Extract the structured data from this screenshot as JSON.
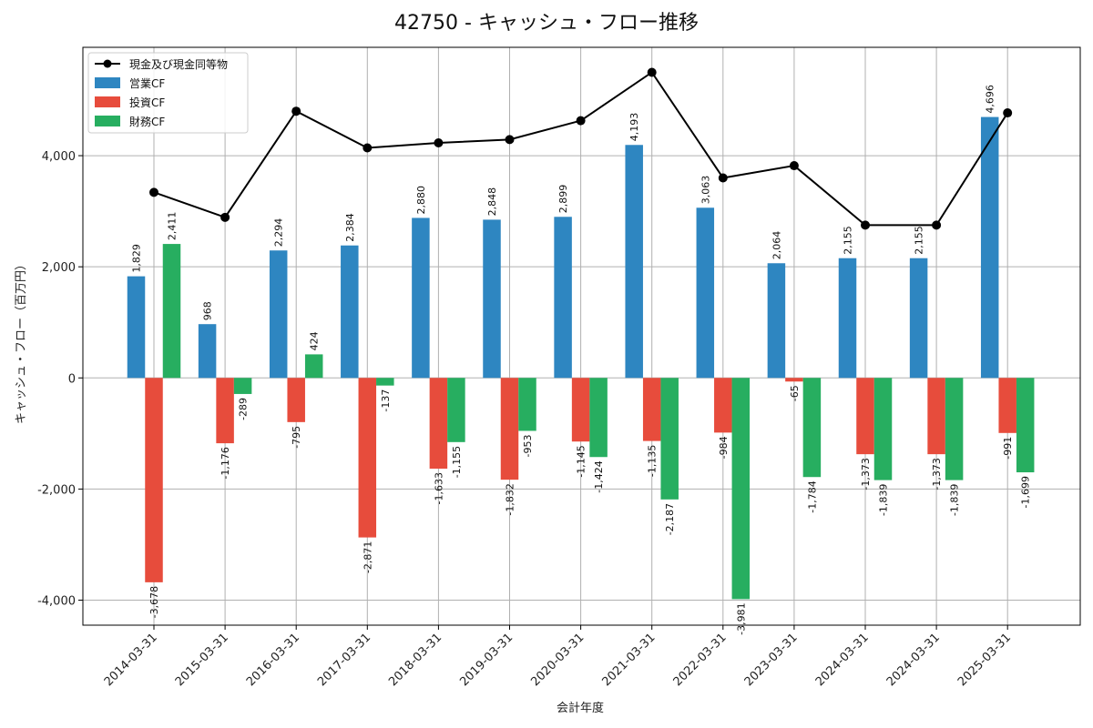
{
  "chart_data": {
    "type": "bar",
    "title": "42750 - キャッシュ・フロー推移",
    "xlabel": "会計年度",
    "ylabel": "キャッシュ・フロー（百万円）",
    "ylim": [
      -4450,
      5950
    ],
    "yticks": [
      -4000,
      -2000,
      0,
      2000,
      4000
    ],
    "ytick_labels": [
      "-4,000",
      "-2,000",
      "0",
      "2,000",
      "4,000"
    ],
    "grid": true,
    "legend_position": "top-left",
    "categories": [
      "2014-03-31",
      "2015-03-31",
      "2016-03-31",
      "2017-03-31",
      "2018-03-31",
      "2019-03-31",
      "2020-03-31",
      "2021-03-31",
      "2022-03-31",
      "2023-03-31",
      "2024-03-31",
      "2024-03-31",
      "2025-03-31"
    ],
    "series": [
      {
        "name": "営業CF",
        "type": "bar",
        "color": "#2e86c1",
        "values": [
          1829,
          968,
          2294,
          2384,
          2880,
          2848,
          2899,
          4193,
          3063,
          2064,
          2155,
          2155,
          4696
        ],
        "labels": [
          "1,829",
          "968",
          "2,294",
          "2,384",
          "2,880",
          "2,848",
          "2,899",
          "4,193",
          "3,063",
          "2,064",
          "2,155",
          "2,155",
          "4,696"
        ]
      },
      {
        "name": "投資CF",
        "type": "bar",
        "color": "#e74c3c",
        "values": [
          -3678,
          -1176,
          -795,
          -2871,
          -1633,
          -1832,
          -1145,
          -1135,
          -984,
          -65,
          -1373,
          -1373,
          -991
        ],
        "labels": [
          "-3,678",
          "-1,176",
          "-795",
          "-2,871",
          "-1,633",
          "-1,832",
          "-1,145",
          "-1,135",
          "-984",
          "-65",
          "-1,373",
          "-1,373",
          "-991"
        ]
      },
      {
        "name": "財務CF",
        "type": "bar",
        "color": "#27ae60",
        "values": [
          2411,
          -289,
          424,
          -137,
          -1155,
          -953,
          -1424,
          -2187,
          -3981,
          -1784,
          -1839,
          -1839,
          -1699
        ],
        "labels": [
          "2,411",
          "-289",
          "424",
          "-137",
          "-1,155",
          "-953",
          "-1,424",
          "-2,187",
          "-3,981",
          "-1,784",
          "-1,839",
          "-1,839",
          "-1,699"
        ]
      },
      {
        "name": "現金及び現金同等物",
        "type": "line",
        "color": "#000000",
        "values": [
          3340,
          2890,
          4800,
          4140,
          4230,
          4290,
          4630,
          5500,
          3600,
          3820,
          2750,
          2750,
          4770
        ]
      }
    ]
  }
}
